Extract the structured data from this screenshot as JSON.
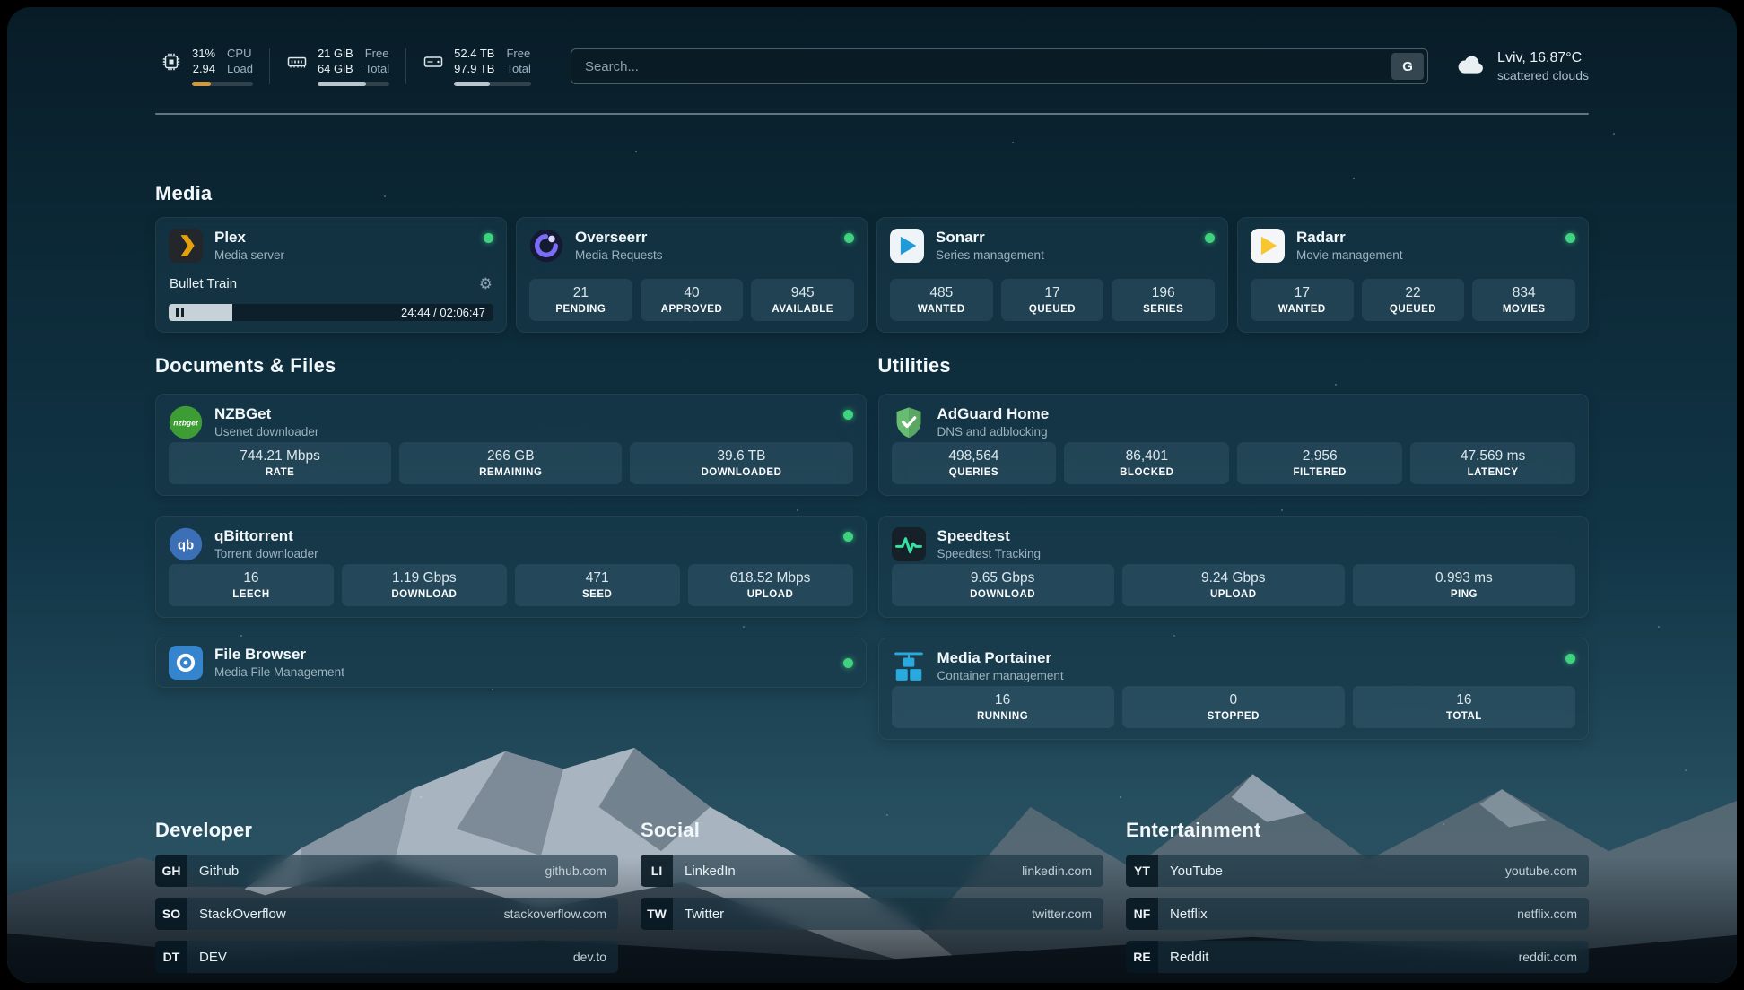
{
  "topbar": {
    "cpu": {
      "value": "31%",
      "sub": "2.94",
      "label_top": "CPU",
      "label_bottom": "Load",
      "progress": 31
    },
    "memory": {
      "value": "21 GiB",
      "sub": "64 GiB",
      "label_top": "Free",
      "label_bottom": "Total",
      "progress": 67
    },
    "disk": {
      "value": "52.4 TB",
      "sub": "97.9 TB",
      "label_top": "Free",
      "label_bottom": "Total",
      "progress": 46
    },
    "search": {
      "placeholder": "Search...",
      "engine_button": "G"
    },
    "weather": {
      "location": "Lviv, 16.87°C",
      "condition": "scattered clouds"
    }
  },
  "sections": {
    "media": "Media",
    "documents": "Documents & Files",
    "utilities": "Utilities",
    "developer": "Developer",
    "social": "Social",
    "entertainment": "Entertainment"
  },
  "services": {
    "plex": {
      "name": "Plex",
      "desc": "Media server",
      "online": true,
      "now_playing": {
        "title": "Bullet Train",
        "time": "24:44 / 02:06:47",
        "progress_percent": 19.5,
        "state": "paused"
      }
    },
    "overseerr": {
      "name": "Overseerr",
      "desc": "Media Requests",
      "online": true,
      "stats": [
        {
          "value": "21",
          "label": "PENDING"
        },
        {
          "value": "40",
          "label": "APPROVED"
        },
        {
          "value": "945",
          "label": "AVAILABLE"
        }
      ]
    },
    "sonarr": {
      "name": "Sonarr",
      "desc": "Series management",
      "online": true,
      "stats": [
        {
          "value": "485",
          "label": "WANTED"
        },
        {
          "value": "17",
          "label": "QUEUED"
        },
        {
          "value": "196",
          "label": "SERIES"
        }
      ]
    },
    "radarr": {
      "name": "Radarr",
      "desc": "Movie management",
      "online": true,
      "stats": [
        {
          "value": "17",
          "label": "WANTED"
        },
        {
          "value": "22",
          "label": "QUEUED"
        },
        {
          "value": "834",
          "label": "MOVIES"
        }
      ]
    },
    "nzbget": {
      "name": "NZBGet",
      "desc": "Usenet downloader",
      "online": true,
      "stats": [
        {
          "value": "744.21 Mbps",
          "label": "RATE"
        },
        {
          "value": "266 GB",
          "label": "REMAINING"
        },
        {
          "value": "39.6 TB",
          "label": "DOWNLOADED"
        }
      ]
    },
    "qbittorrent": {
      "name": "qBittorrent",
      "desc": "Torrent downloader",
      "online": true,
      "stats": [
        {
          "value": "16",
          "label": "LEECH"
        },
        {
          "value": "1.19 Gbps",
          "label": "DOWNLOAD"
        },
        {
          "value": "471",
          "label": "SEED"
        },
        {
          "value": "618.52 Mbps",
          "label": "UPLOAD"
        }
      ]
    },
    "filebrowser": {
      "name": "File Browser",
      "desc": "Media File Management",
      "online": true
    },
    "adguard": {
      "name": "AdGuard Home",
      "desc": "DNS and adblocking",
      "online": false,
      "stats": [
        {
          "value": "498,564",
          "label": "QUERIES"
        },
        {
          "value": "86,401",
          "label": "BLOCKED"
        },
        {
          "value": "2,956",
          "label": "FILTERED"
        },
        {
          "value": "47.569 ms",
          "label": "LATENCY"
        }
      ]
    },
    "speedtest": {
      "name": "Speedtest",
      "desc": "Speedtest Tracking",
      "online": false,
      "stats": [
        {
          "value": "9.65 Gbps",
          "label": "DOWNLOAD"
        },
        {
          "value": "9.24 Gbps",
          "label": "UPLOAD"
        },
        {
          "value": "0.993 ms",
          "label": "PING"
        }
      ]
    },
    "portainer": {
      "name": "Media Portainer",
      "desc": "Container management",
      "online": true,
      "stats": [
        {
          "value": "16",
          "label": "RUNNING"
        },
        {
          "value": "0",
          "label": "STOPPED"
        },
        {
          "value": "16",
          "label": "TOTAL"
        }
      ]
    }
  },
  "bookmarks": {
    "developer": [
      {
        "abbr": "GH",
        "name": "Github",
        "url": "github.com"
      },
      {
        "abbr": "SO",
        "name": "StackOverflow",
        "url": "stackoverflow.com"
      },
      {
        "abbr": "DT",
        "name": "DEV",
        "url": "dev.to"
      }
    ],
    "social": [
      {
        "abbr": "LI",
        "name": "LinkedIn",
        "url": "linkedin.com"
      },
      {
        "abbr": "TW",
        "name": "Twitter",
        "url": "twitter.com"
      }
    ],
    "entertainment": [
      {
        "abbr": "YT",
        "name": "YouTube",
        "url": "youtube.com"
      },
      {
        "abbr": "NF",
        "name": "Netflix",
        "url": "netflix.com"
      },
      {
        "abbr": "RE",
        "name": "Reddit",
        "url": "reddit.com"
      }
    ]
  },
  "colors": {
    "status_green": "#3fd27f",
    "plex_orange": "#e5a00d",
    "overseerr_purple": "#7b6ef6",
    "sonarr_blue": "#1f9bd7",
    "radarr_amber": "#f8c630",
    "nzbget_green": "#3e9c35",
    "qbittorrent_blue": "#3b6fb6",
    "filebrowser_blue": "#3584ce",
    "adguard_green": "#68bc71",
    "speedtest_teal": "#35e0a1",
    "portainer_blue": "#29aadf",
    "cpu_bar": "#d19a3f",
    "bar_fill": "#b9c6cf"
  }
}
